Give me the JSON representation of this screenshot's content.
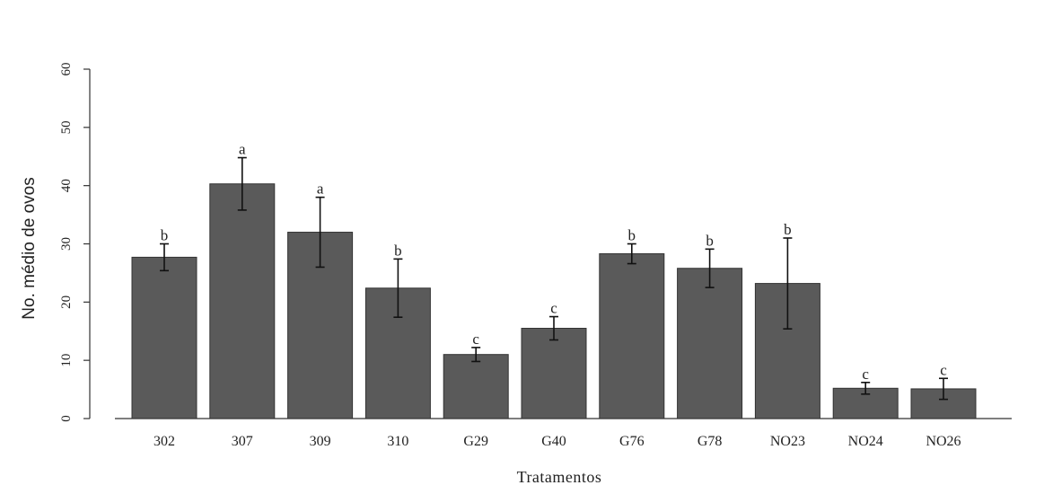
{
  "chart_data": {
    "type": "bar",
    "categories": [
      "302",
      "307",
      "309",
      "310",
      "G29",
      "G40",
      "G76",
      "G78",
      "NO23",
      "NO24",
      "NO26"
    ],
    "values": [
      27.7,
      40.3,
      32.0,
      22.4,
      11.0,
      15.5,
      28.3,
      25.8,
      23.2,
      5.2,
      5.1
    ],
    "error": [
      2.3,
      4.5,
      6.0,
      5.0,
      1.2,
      2.0,
      1.7,
      3.3,
      7.8,
      1.0,
      1.8
    ],
    "significance": [
      "b",
      "a",
      "a",
      "b",
      "c",
      "c",
      "b",
      "b",
      "b",
      "c",
      "c"
    ],
    "title": "",
    "xlabel": "Tratamentos",
    "ylabel": "No. médio de ovos",
    "ylim": [
      0,
      60
    ],
    "yticks": [
      0,
      10,
      20,
      30,
      40,
      50,
      60
    ],
    "grid": false,
    "colors": {
      "bar": "#5a5a5a",
      "axis": "#333333"
    }
  }
}
